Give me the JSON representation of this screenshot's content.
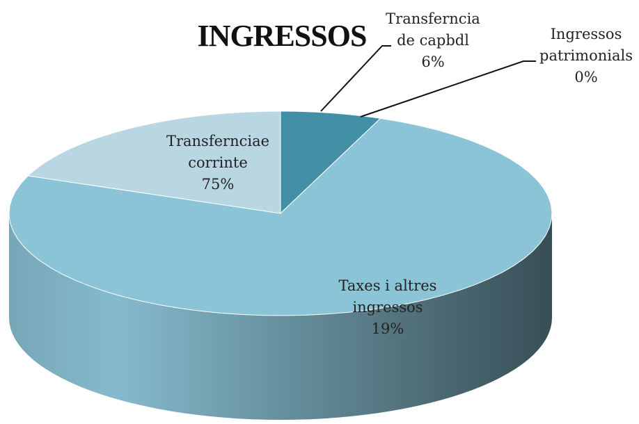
{
  "chart_data": {
    "type": "pie3d",
    "title": "INGRESSOS",
    "categories": [
      "Transferncia de capbdl",
      "Ingressos patrimonials",
      "Transfernciae corrinte",
      "Taxes i altres ingressos"
    ],
    "values": [
      6,
      0,
      75,
      19
    ],
    "value_labels": [
      "6%",
      "0%",
      "75%",
      "19%"
    ],
    "colors": [
      "#438fa6",
      "#3f8aa0",
      "#8cc4d7",
      "#b9d6e3"
    ]
  }
}
